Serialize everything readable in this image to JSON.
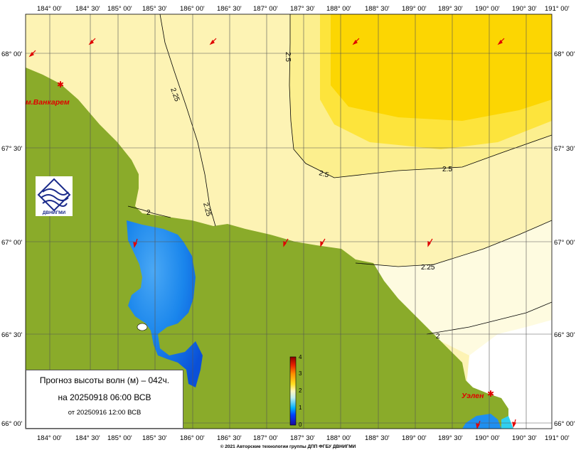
{
  "colors": {
    "land": "#8aab2a",
    "sea_2_0": "#fefbe0",
    "sea_2_25": "#fdf3b4",
    "sea_2_5": "#fcef8e",
    "sea_2_75": "#fde43c",
    "sea_3_0": "#fcd602",
    "shallow_blue": "#1f8ff0",
    "grid": "#555555",
    "marker": "#e00000"
  },
  "lon_ticks_top": [
    "184° 00'",
    "184° 30'",
    "185° 00'",
    "185° 30'",
    "186° 00'",
    "186° 30'",
    "187° 00'",
    "187° 30'",
    "188° 00'",
    "188° 30'",
    "189° 00'",
    "189° 30'",
    "190° 00'",
    "190° 30'",
    "191° 00'"
  ],
  "lon_ticks_bottom": [
    "184° 00'",
    "184° 30'",
    "185° 00'",
    "185° 30'",
    "186° 00'",
    "186° 30'",
    "187° 00'",
    "187° 30'",
    "188° 00'",
    "188° 30'",
    "189° 00'",
    "189° 30'",
    "190° 00'",
    "190° 30'",
    "191° 00'"
  ],
  "lat_ticks": [
    "68° 00'",
    "67° 30'",
    "67° 00'",
    "66° 30'",
    "66° 00'"
  ],
  "contour_labels": [
    "2.25",
    "2.5",
    "2.5",
    "2.5",
    "2.25",
    "2",
    "2.25",
    "2"
  ],
  "places": [
    "м.Ванкарем",
    "Уэлен"
  ],
  "logo": {
    "text": "ДВНИГМИ"
  },
  "colorbar": {
    "labels": [
      "0",
      "1",
      "2",
      "3",
      "4"
    ]
  },
  "info": {
    "title": "Прогноз высоты волн (м) – 042ч.",
    "date": "на 20250918 06:00 ВСВ",
    "run": "от 20250916 12:00 ВСВ"
  },
  "copyright": "© 2021 Авторские технологии группы ДПП ФГБУ ДВНИГМИ"
}
